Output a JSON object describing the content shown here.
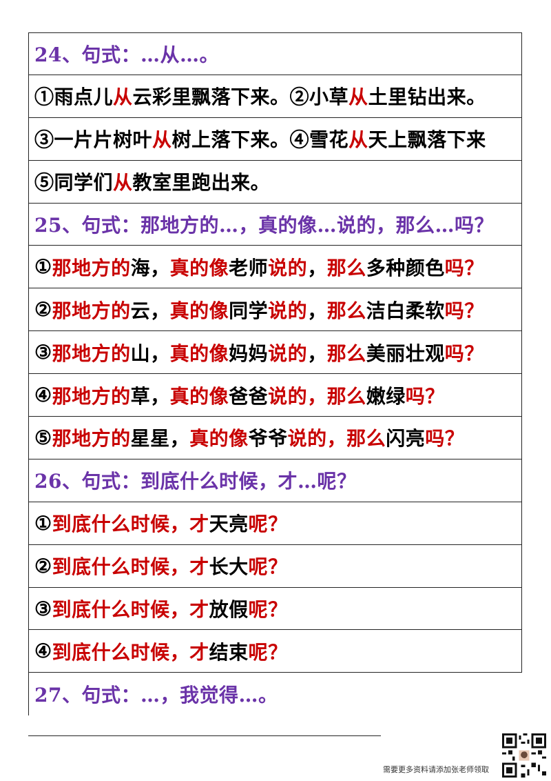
{
  "rows": [
    {
      "type": "header",
      "segments": [
        {
          "t": "24、句式：…从…。"
        }
      ]
    },
    {
      "type": "item",
      "segments": [
        {
          "t": "①雨点儿"
        },
        {
          "t": "从",
          "r": 1
        },
        {
          "t": "云彩里飘落下来。②小草"
        },
        {
          "t": "从",
          "r": 1
        },
        {
          "t": "土里钻出来。"
        }
      ]
    },
    {
      "type": "item",
      "segments": [
        {
          "t": "③一片片树叶"
        },
        {
          "t": "从",
          "r": 1
        },
        {
          "t": "树上落下来。④雪花"
        },
        {
          "t": "从",
          "r": 1
        },
        {
          "t": "天上飘落下来"
        }
      ]
    },
    {
      "type": "item",
      "segments": [
        {
          "t": "⑤同学们"
        },
        {
          "t": "从",
          "r": 1
        },
        {
          "t": "教室里跑出来。"
        }
      ]
    },
    {
      "type": "header",
      "segments": [
        {
          "t": "25、句式：那地方的…，真的像…说的，那么…吗？"
        }
      ]
    },
    {
      "type": "item",
      "segments": [
        {
          "t": "①"
        },
        {
          "t": "那地方的",
          "r": 1
        },
        {
          "t": "海，"
        },
        {
          "t": "真的像",
          "r": 1
        },
        {
          "t": "老师"
        },
        {
          "t": "说的",
          "r": 1
        },
        {
          "t": "，"
        },
        {
          "t": "那么",
          "r": 1
        },
        {
          "t": "多种颜色"
        },
        {
          "t": "吗？",
          "r": 1
        }
      ]
    },
    {
      "type": "item",
      "segments": [
        {
          "t": "②"
        },
        {
          "t": "那地方的",
          "r": 1
        },
        {
          "t": "云，"
        },
        {
          "t": "真的像",
          "r": 1
        },
        {
          "t": "同学"
        },
        {
          "t": "说的",
          "r": 1
        },
        {
          "t": "，"
        },
        {
          "t": "那么",
          "r": 1
        },
        {
          "t": "洁白柔软"
        },
        {
          "t": "吗？",
          "r": 1
        }
      ]
    },
    {
      "type": "item",
      "segments": [
        {
          "t": "③"
        },
        {
          "t": "那地方的",
          "r": 1
        },
        {
          "t": "山，"
        },
        {
          "t": "真的像",
          "r": 1
        },
        {
          "t": "妈妈"
        },
        {
          "t": "说的",
          "r": 1
        },
        {
          "t": "，"
        },
        {
          "t": "那么",
          "r": 1
        },
        {
          "t": "美丽壮观"
        },
        {
          "t": "吗？",
          "r": 1
        }
      ]
    },
    {
      "type": "item",
      "segments": [
        {
          "t": "④"
        },
        {
          "t": "那地方的",
          "r": 1
        },
        {
          "t": "草，"
        },
        {
          "t": "真的像",
          "r": 1
        },
        {
          "t": "爸爸"
        },
        {
          "t": "说的，那么",
          "r": 1
        },
        {
          "t": "嫩绿"
        },
        {
          "t": "吗？",
          "r": 1
        }
      ]
    },
    {
      "type": "item",
      "segments": [
        {
          "t": "⑤"
        },
        {
          "t": "那地方的",
          "r": 1
        },
        {
          "t": "星星，"
        },
        {
          "t": "真的像",
          "r": 1
        },
        {
          "t": "爷爷"
        },
        {
          "t": "说的，那么",
          "r": 1
        },
        {
          "t": "闪亮"
        },
        {
          "t": "吗？",
          "r": 1
        }
      ]
    },
    {
      "type": "header",
      "segments": [
        {
          "t": "26、句式：到底什么时候，才…呢？"
        }
      ]
    },
    {
      "type": "item",
      "segments": [
        {
          "t": "①"
        },
        {
          "t": "到底什么时候，才",
          "r": 1
        },
        {
          "t": "天亮"
        },
        {
          "t": "呢？",
          "r": 1
        }
      ]
    },
    {
      "type": "item",
      "segments": [
        {
          "t": "②"
        },
        {
          "t": "到底什么时候，才",
          "r": 1
        },
        {
          "t": "长大"
        },
        {
          "t": "呢？",
          "r": 1
        }
      ]
    },
    {
      "type": "item",
      "segments": [
        {
          "t": "③"
        },
        {
          "t": "到底什么时候，才",
          "r": 1
        },
        {
          "t": "放假"
        },
        {
          "t": "呢？",
          "r": 1
        }
      ]
    },
    {
      "type": "item",
      "segments": [
        {
          "t": "④"
        },
        {
          "t": "到底什么时候，才",
          "r": 1
        },
        {
          "t": "结束"
        },
        {
          "t": "呢？",
          "r": 1
        }
      ]
    },
    {
      "type": "header",
      "last": true,
      "segments": [
        {
          "t": "27、句式：…，我觉得…。"
        }
      ]
    }
  ],
  "footer": {
    "text": "需要更多资料请添加张老师领取",
    "qr_icon": "qr-code-icon"
  }
}
